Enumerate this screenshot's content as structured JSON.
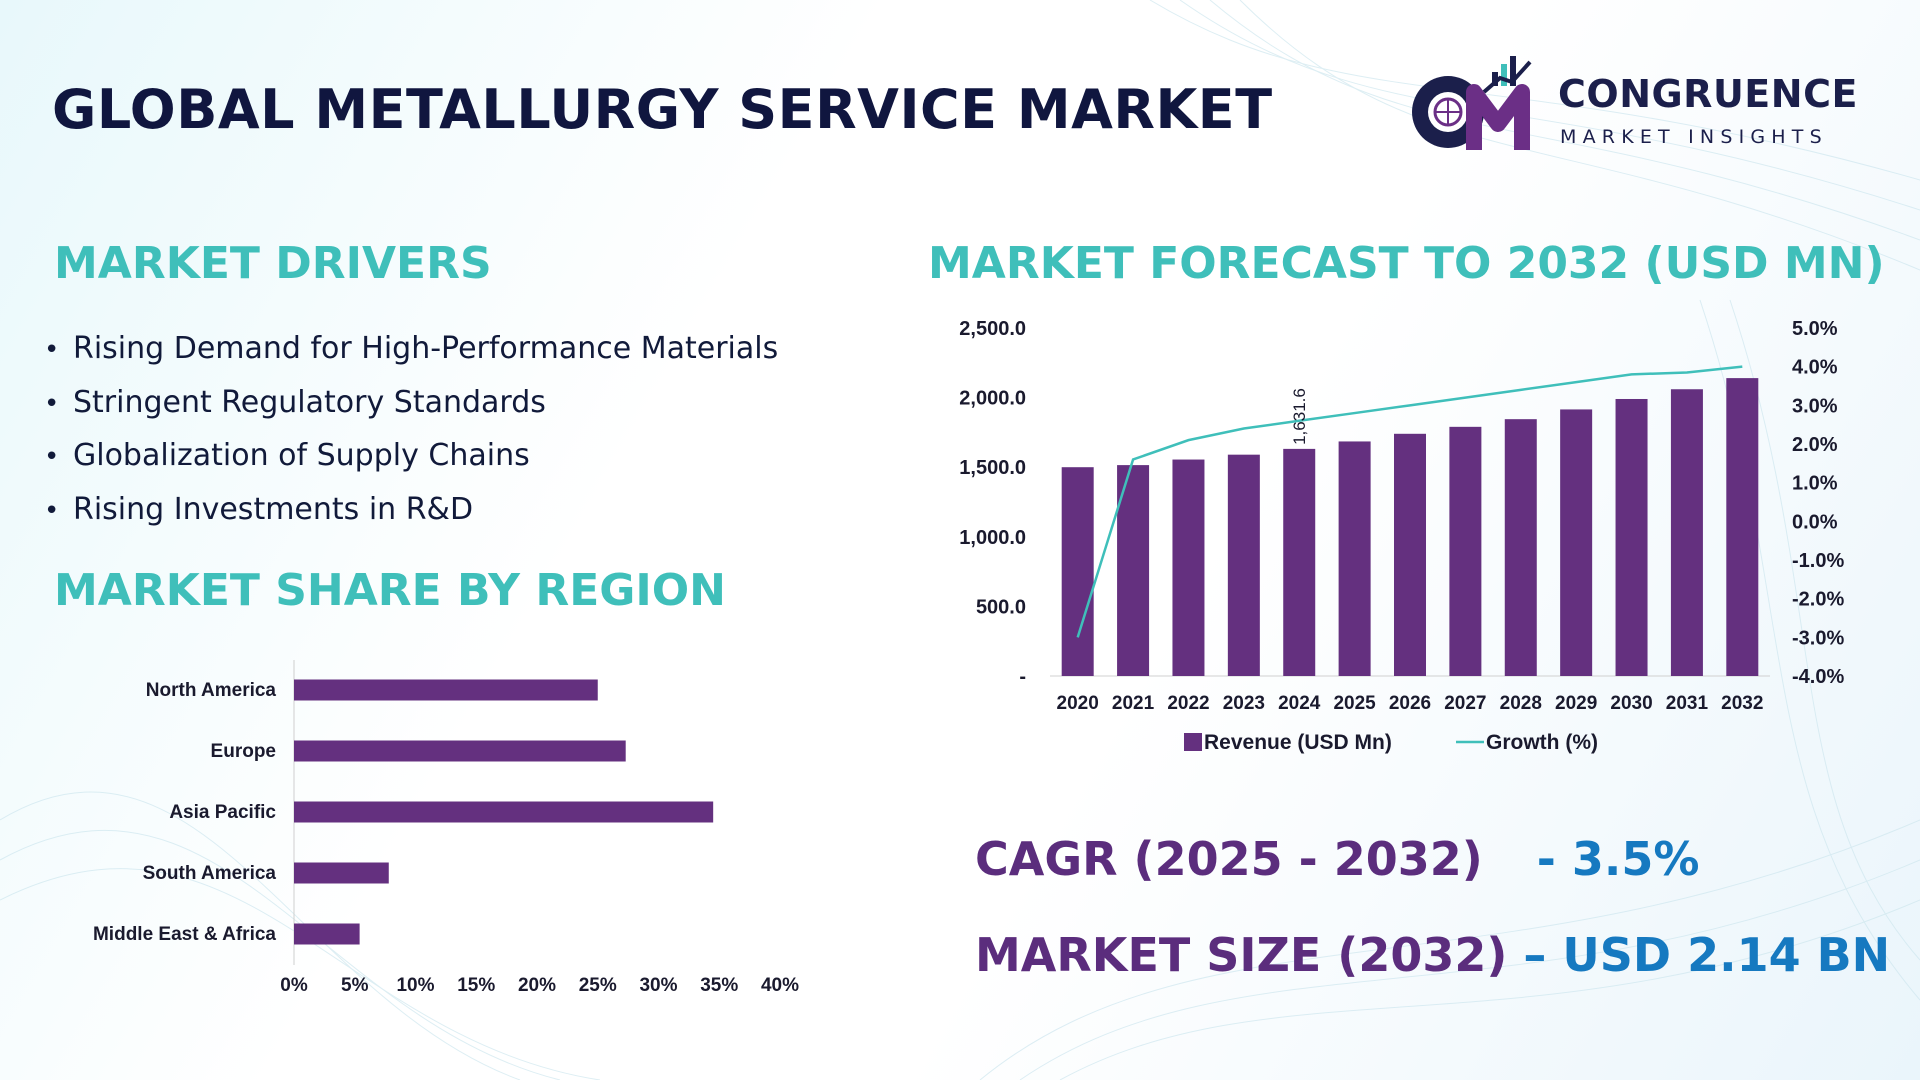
{
  "title": "GLOBAL METALLURGY SERVICE MARKET",
  "logo": {
    "brand": "CONGRUENCE",
    "tagline": "MARKET INSIGHTS",
    "monogram": "CM"
  },
  "drivers": {
    "title": "MARKET DRIVERS",
    "items": [
      "Rising Demand for High-Performance Materials",
      "Stringent Regulatory Standards",
      "Globalization of Supply Chains",
      "Rising Investments in R&D"
    ]
  },
  "region": {
    "title": "MARKET SHARE BY REGION"
  },
  "forecast": {
    "title": "MARKET FORECAST TO 2032 (USD MN)"
  },
  "kpis": {
    "cagr_label": "CAGR (2025 - 2032)",
    "cagr_value": "- 3.5%",
    "size_label": "MARKET SIZE (2032)",
    "size_value": "– USD 2.14 BN"
  },
  "colors": {
    "bar": "#64307f",
    "line": "#3fbfba",
    "title": "#10163f",
    "accent": "#3fbfba"
  },
  "chart_data": [
    {
      "type": "bar",
      "orientation": "horizontal",
      "categories": [
        "North America",
        "Europe",
        "Asia Pacific",
        "South America",
        "Middle East & Africa"
      ],
      "values": [
        25,
        27.3,
        34.5,
        7.8,
        5.4
      ],
      "xlim": [
        0,
        40
      ],
      "xticks": [
        "0%",
        "5%",
        "10%",
        "15%",
        "20%",
        "25%",
        "30%",
        "35%",
        "40%"
      ]
    },
    {
      "type": "bar",
      "categories": [
        "2020",
        "2021",
        "2022",
        "2023",
        "2024",
        "2025",
        "2026",
        "2027",
        "2028",
        "2029",
        "2030",
        "2031",
        "2032"
      ],
      "series": [
        {
          "name": "Revenue (USD Mn)",
          "type": "bar",
          "axis": "left",
          "values": [
            1500,
            1515,
            1555,
            1590,
            1631.6,
            1685,
            1740,
            1790,
            1845,
            1915,
            1990,
            2060,
            2140
          ]
        },
        {
          "name": "Growth (%)",
          "type": "line",
          "axis": "right",
          "values": [
            -3.0,
            1.6,
            2.1,
            2.4,
            2.6,
            2.8,
            3.0,
            3.2,
            3.4,
            3.6,
            3.8,
            3.85,
            4.0
          ]
        }
      ],
      "data_labels": [
        {
          "category": "2024",
          "text": "1,631.6"
        }
      ],
      "ylim_left": [
        0,
        2500
      ],
      "yticks_left": [
        "-",
        "500.0",
        "1,000.0",
        "1,500.0",
        "2,000.0",
        "2,500.0"
      ],
      "ylim_right": [
        -4,
        5
      ],
      "yticks_right": [
        "-4.0%",
        "-3.0%",
        "-2.0%",
        "-1.0%",
        "0.0%",
        "1.0%",
        "2.0%",
        "3.0%",
        "4.0%",
        "5.0%"
      ],
      "legend": "bottom"
    }
  ]
}
